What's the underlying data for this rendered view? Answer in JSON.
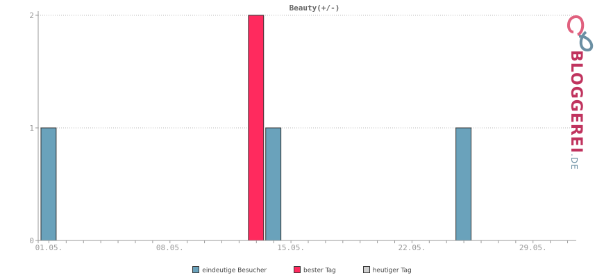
{
  "colors": {
    "visitors": "#6aa2bb",
    "best_day": "#ff2a5e",
    "today": "#d0d0d0",
    "axis": "#999999",
    "grid": "#bbbbbb"
  },
  "chart_data": {
    "type": "bar",
    "title": "Beauty(+/-)",
    "yticks": [
      0,
      1,
      2
    ],
    "ylim": [
      0,
      2
    ],
    "x_tick_labels": [
      "01.05.",
      "08.05.",
      "15.05.",
      "22.05.",
      "29.05."
    ],
    "x_tick_days": [
      1,
      8,
      15,
      22,
      29
    ],
    "x_domain_days": [
      1,
      31
    ],
    "grid": "horizontal dotted",
    "legend_position": "bottom",
    "series": [
      {
        "name": "eindeutige Besucher",
        "points": [
          {
            "day": 1,
            "value": 1
          },
          {
            "day": 14,
            "value": 1
          },
          {
            "day": 25,
            "value": 1
          }
        ]
      },
      {
        "name": "bester Tag",
        "points": [
          {
            "day": 13,
            "value": 2
          }
        ]
      },
      {
        "name": "heutiger Tag",
        "points": []
      }
    ]
  },
  "logo": {
    "text": "BLOGGEREI",
    "suffix": ".DE"
  }
}
